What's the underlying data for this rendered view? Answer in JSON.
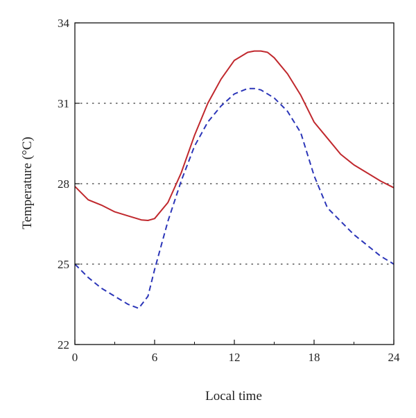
{
  "chart_data": {
    "type": "line",
    "title": "",
    "xlabel": "Local time",
    "ylabel": "Temperature (°C)",
    "xlim": [
      0,
      24
    ],
    "ylim": [
      22,
      34
    ],
    "xticks": [
      0,
      6,
      12,
      18,
      24
    ],
    "yticks": [
      22,
      25,
      28,
      31,
      34
    ],
    "grid": {
      "y_dotted_at": [
        25,
        28,
        31
      ]
    },
    "series": [
      {
        "color": "#c0282d",
        "style": "solid",
        "x": [
          0,
          1,
          2,
          3,
          4,
          5,
          5.5,
          6,
          7,
          8,
          9,
          10,
          11,
          12,
          13,
          13.5,
          14,
          14.5,
          15,
          16,
          17,
          18,
          19,
          20,
          21,
          22,
          23,
          24
        ],
        "y": [
          27.9,
          27.4,
          27.2,
          26.95,
          26.8,
          26.65,
          26.63,
          26.7,
          27.3,
          28.4,
          29.8,
          31.0,
          31.9,
          32.6,
          32.9,
          32.95,
          32.95,
          32.9,
          32.7,
          32.1,
          31.3,
          30.3,
          29.7,
          29.1,
          28.7,
          28.4,
          28.1,
          27.85
        ]
      },
      {
        "color": "#2b35b8",
        "style": "dashed",
        "x": [
          0,
          1,
          2,
          3,
          4,
          4.8,
          5.5,
          6,
          7,
          8,
          9,
          10,
          11,
          12,
          13,
          13.5,
          14,
          15,
          16,
          17,
          18,
          19,
          20,
          21,
          22,
          23,
          24
        ],
        "y": [
          25.0,
          24.5,
          24.1,
          23.8,
          23.5,
          23.35,
          23.8,
          24.8,
          26.6,
          28.1,
          29.4,
          30.3,
          30.9,
          31.35,
          31.55,
          31.55,
          31.5,
          31.2,
          30.7,
          29.9,
          28.3,
          27.1,
          26.6,
          26.1,
          25.7,
          25.3,
          25.0
        ]
      }
    ]
  }
}
